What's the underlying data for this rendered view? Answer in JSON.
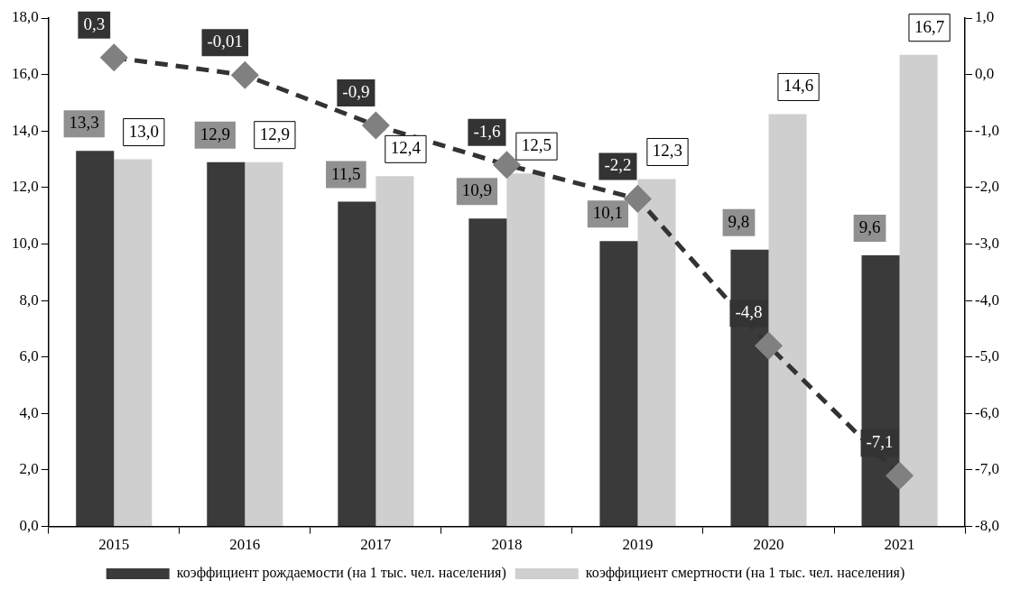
{
  "chart_data": {
    "type": "bar",
    "categories": [
      "2015",
      "2016",
      "2017",
      "2018",
      "2019",
      "2020",
      "2021"
    ],
    "series": [
      {
        "name": "коэффициент рождаемости (на 1 тыс. чел. населения)",
        "color": "#3a3a3a",
        "values": [
          13.3,
          12.9,
          11.5,
          10.9,
          10.1,
          9.8,
          9.6
        ],
        "value_labels": [
          "13,3",
          "12,9",
          "11,5",
          "10,9",
          "10,1",
          "9,8",
          "9,6"
        ]
      },
      {
        "name": "коэффициент смертности (на 1 тыс. чел. населения)",
        "color": "#cfcfcf",
        "values": [
          13.0,
          12.9,
          12.4,
          12.5,
          12.3,
          14.6,
          16.7
        ],
        "value_labels": [
          "13,0",
          "12,9",
          "12,4",
          "12,5",
          "12,3",
          "14,6",
          "16,7"
        ]
      },
      {
        "type": "line",
        "axis": "y2",
        "color": "#808080",
        "marker": "diamond",
        "line_style": "dashed",
        "values": [
          0.3,
          -0.01,
          -0.9,
          -1.6,
          -2.2,
          -4.8,
          -7.1
        ],
        "value_labels": [
          "0,3",
          "-0,01",
          "-0,9",
          "-1,6",
          "-2,2",
          "-4,8",
          "-7,1"
        ]
      }
    ],
    "ylim": [
      0,
      18
    ],
    "yticks": [
      {
        "value": 0,
        "label": "0,0"
      },
      {
        "value": 2,
        "label": "2,0"
      },
      {
        "value": 4,
        "label": "4,0"
      },
      {
        "value": 6,
        "label": "6,0"
      },
      {
        "value": 8,
        "label": "8,0"
      },
      {
        "value": 10,
        "label": "10,0"
      },
      {
        "value": 12,
        "label": "12,0"
      },
      {
        "value": 14,
        "label": "14,0"
      },
      {
        "value": 16,
        "label": "16,0"
      },
      {
        "value": 18,
        "label": "18,0"
      }
    ],
    "y2lim": [
      -8,
      1
    ],
    "y2ticks": [
      {
        "value": -8,
        "label": "-8,0"
      },
      {
        "value": -7,
        "label": "-7,0"
      },
      {
        "value": -6,
        "label": "-6,0"
      },
      {
        "value": -5,
        "label": "-5,0"
      },
      {
        "value": -4,
        "label": "-4,0"
      },
      {
        "value": -3,
        "label": "-3,0"
      },
      {
        "value": -2,
        "label": "-2,0"
      },
      {
        "value": -1,
        "label": "-1,0"
      },
      {
        "value": 0,
        "label": "0,0"
      },
      {
        "value": 1,
        "label": "1,0"
      }
    ],
    "legend": "bottom"
  }
}
